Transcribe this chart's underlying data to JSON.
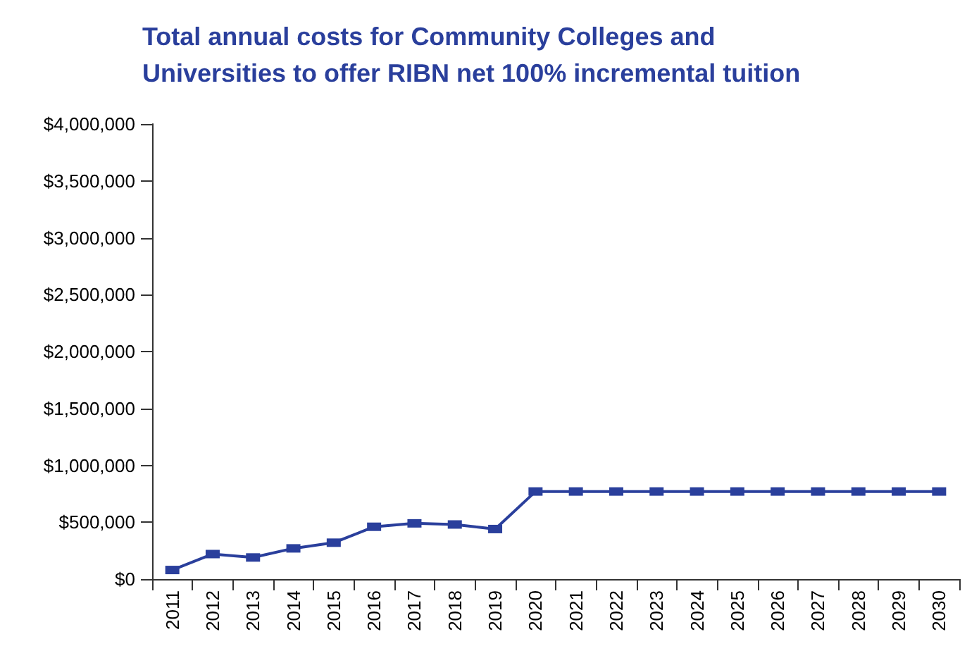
{
  "chart_data": {
    "type": "line",
    "title": "Total annual costs for Community Colleges and\nUniversities to offer RIBN net 100% incremental tuition",
    "categories": [
      "2011",
      "2012",
      "2013",
      "2014",
      "2015",
      "2016",
      "2017",
      "2018",
      "2019",
      "2020",
      "2021",
      "2022",
      "2023",
      "2024",
      "2025",
      "2026",
      "2027",
      "2028",
      "2029",
      "2030"
    ],
    "series": [
      {
        "color": "#2a3f9c",
        "values": [
          80000,
          220000,
          190000,
          270000,
          320000,
          460000,
          490000,
          480000,
          440000,
          770000,
          770000,
          770000,
          770000,
          770000,
          770000,
          770000,
          770000,
          770000,
          770000,
          770000
        ]
      }
    ],
    "ylim": [
      0,
      4000000
    ],
    "yticks": [
      {
        "value": 0,
        "label": "$0"
      },
      {
        "value": 500000,
        "label": "$500,000"
      },
      {
        "value": 1000000,
        "label": "$1,000,000"
      },
      {
        "value": 1500000,
        "label": "$1,500,000"
      },
      {
        "value": 2000000,
        "label": "$2,000,000"
      },
      {
        "value": 2500000,
        "label": "$2,500,000"
      },
      {
        "value": 3000000,
        "label": "$3,000,000"
      },
      {
        "value": 3500000,
        "label": "$3,500,000"
      },
      {
        "value": 4000000,
        "label": "$4,000,000"
      }
    ],
    "grid": false,
    "marker": "square",
    "line_style": "solid"
  }
}
